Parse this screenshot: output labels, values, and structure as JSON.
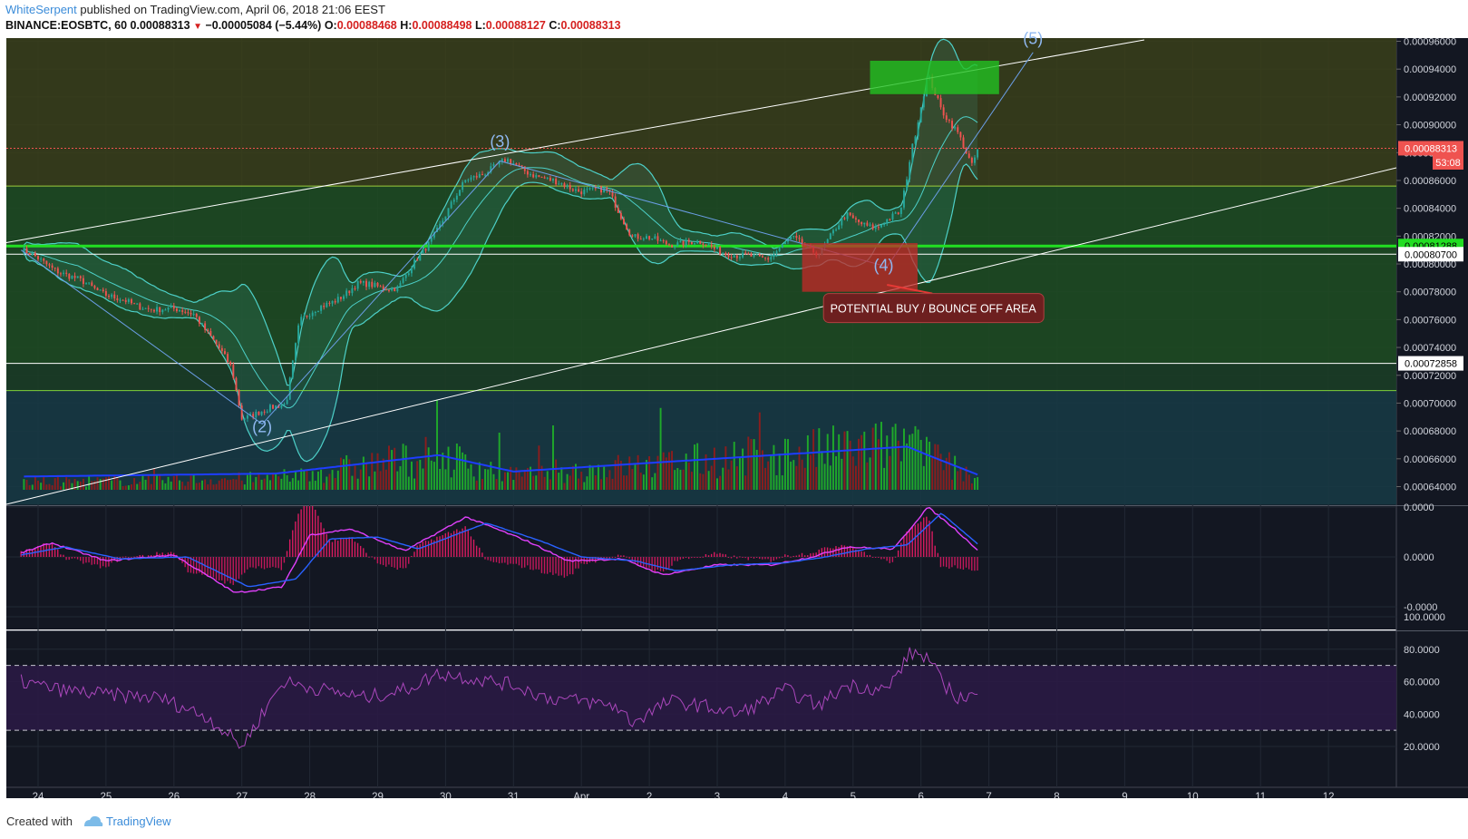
{
  "header": {
    "user": "WhiteSerpent",
    "published_text": " published on TradingView.com, April 06, 2018 21:06 EEST",
    "symbol": "BINANCE:EOSBTC, 60",
    "last": "0.00088313",
    "change": "−0.00005084 (−5.44%)",
    "o_label": "O:",
    "o_value": "0.00088468",
    "h_label": "H:",
    "h_value": "0.00088498",
    "l_label": "L:",
    "l_value": "0.00088127",
    "c_label": "C:",
    "c_value": "0.00088313"
  },
  "footer": {
    "created_with": "Created with",
    "brand": "TradingView"
  },
  "colors": {
    "background": "#131722",
    "up": "#26a69a",
    "down": "#ef5350",
    "bands": "#4dd0c8",
    "macd": "#e040fb",
    "signal": "#2962ff",
    "rsi": "#ab47bc",
    "buy_zone": "#c62828",
    "target_zone": "#22c222"
  },
  "chart_data": [
    {
      "type": "candlestick",
      "panel": "price",
      "y_ticks": [
        "0.00096000",
        "0.00094000",
        "0.00092000",
        "0.00090000",
        "0.00088000",
        "0.00086000",
        "0.00084000",
        "0.00082000",
        "0.00080000",
        "0.00078000",
        "0.00076000",
        "0.00074000",
        "0.00072000",
        "0.00070000",
        "0.00068000",
        "0.00066000",
        "0.00064000"
      ],
      "ylim": [
        0.00064,
        0.00096
      ],
      "x_ticks": [
        "24",
        "25",
        "26",
        "27",
        "28",
        "29",
        "30",
        "31",
        "Apr",
        "2",
        "3",
        "4",
        "5",
        "6",
        "7",
        "8",
        "9",
        "10",
        "11",
        "12"
      ],
      "price_labels": [
        {
          "value": "0.00088313",
          "y": 0.00088313,
          "style": "last"
        },
        {
          "value": "53:08",
          "y": 0.000873,
          "style": "timer"
        },
        {
          "value": "0.00081288",
          "y": 0.00081288,
          "style": "green"
        },
        {
          "value": "0.00080700",
          "y": 0.000807,
          "style": "white"
        },
        {
          "value": "0.00072858",
          "y": 0.00072858,
          "style": "white"
        }
      ],
      "horizontal_lines": [
        0.000856,
        0.00081288,
        0.000807,
        0.00072858,
        0.000709
      ],
      "trend_lines": [
        {
          "from": [
            23.75,
            0.000816
          ],
          "to": [
            26.05,
            0.00094
          ],
          "note": "upper channel"
        },
        {
          "from": [
            23.75,
            0.00064
          ],
          "to": [
            26.05,
            0.00087
          ],
          "note": "lower channel"
        }
      ],
      "wave_labels": [
        {
          "label": "(2)",
          "x": 27.3,
          "y": 0.000679
        },
        {
          "label": "(3)",
          "x": 30.8,
          "y": 0.000884
        },
        {
          "label": "(4)",
          "x": 5.45,
          "y": 0.000795
        },
        {
          "label": "(5)",
          "x": 7.65,
          "y": 0.000958
        }
      ],
      "wave_path": [
        {
          "x": 23.75,
          "y": 0.00081
        },
        {
          "x": 27.3,
          "y": 0.000685
        },
        {
          "x": 30.8,
          "y": 0.000874
        },
        {
          "x": 5.5,
          "y": 0.000798
        },
        {
          "x": 7.65,
          "y": 0.000952
        }
      ],
      "zones": [
        {
          "name": "buy",
          "x": [
            4.25,
            5.95
          ],
          "y": [
            0.00078,
            0.000815
          ]
        },
        {
          "name": "target",
          "x": [
            5.25,
            7.15
          ],
          "y": [
            0.000922,
            0.000946
          ]
        }
      ],
      "annotation": {
        "text": "POTENTIAL BUY / BOUNCE OFF AREA",
        "x": 5.9,
        "y": 0.000769
      },
      "anchor_points": [
        {
          "x": 23.75,
          "y": 0.00081
        },
        {
          "x": 24.5,
          "y": 0.00079
        },
        {
          "x": 25.4,
          "y": 0.00077
        },
        {
          "x": 26.3,
          "y": 0.000765
        },
        {
          "x": 26.85,
          "y": 0.000725
        },
        {
          "x": 27.0,
          "y": 0.00069
        },
        {
          "x": 27.4,
          "y": 0.000695
        },
        {
          "x": 27.65,
          "y": 0.0007
        },
        {
          "x": 27.85,
          "y": 0.00076
        },
        {
          "x": 28.3,
          "y": 0.000772
        },
        {
          "x": 28.7,
          "y": 0.000785
        },
        {
          "x": 29.3,
          "y": 0.000783
        },
        {
          "x": 29.75,
          "y": 0.000815
        },
        {
          "x": 30.3,
          "y": 0.00086
        },
        {
          "x": 30.9,
          "y": 0.000874
        },
        {
          "x": 31.5,
          "y": 0.00086
        },
        {
          "x": 32.0,
          "y": 0.000853
        },
        {
          "x": 32.4,
          "y": 0.000852
        },
        {
          "x": 32.75,
          "y": 0.00082
        },
        {
          "x": 33.3,
          "y": 0.000815
        },
        {
          "x": 33.8,
          "y": 0.000815
        },
        {
          "x": 34.3,
          "y": 0.000805
        },
        {
          "x": 34.75,
          "y": 0.000805
        },
        {
          "x": 35.1,
          "y": 0.000818
        },
        {
          "x": 35.5,
          "y": 0.000808
        },
        {
          "x": 35.9,
          "y": 0.000835
        },
        {
          "x": 36.35,
          "y": 0.000825
        },
        {
          "x": 36.7,
          "y": 0.000838
        },
        {
          "x": 36.85,
          "y": 0.00088
        },
        {
          "x": 37.1,
          "y": 0.000935
        },
        {
          "x": 37.3,
          "y": 0.00091
        },
        {
          "x": 37.55,
          "y": 0.000895
        },
        {
          "x": 37.75,
          "y": 0.00087
        },
        {
          "x": 37.85,
          "y": 0.000883
        }
      ],
      "volume_anchor_points": [
        {
          "x": 23.75,
          "y": 0.12
        },
        {
          "x": 27.5,
          "y": 0.18
        },
        {
          "x": 29.9,
          "y": 0.55
        },
        {
          "x": 31.0,
          "y": 0.22
        },
        {
          "x": 36.8,
          "y": 0.72
        },
        {
          "x": 37.1,
          "y": 0.55
        },
        {
          "x": 37.85,
          "y": 0.15
        }
      ]
    },
    {
      "type": "line",
      "panel": "macd",
      "y_ticks": [
        "0.0000",
        "0.0000",
        "-0.0000"
      ],
      "series_points": {
        "macd": [
          [
            23.75,
            0.1
          ],
          [
            24.2,
            0.35
          ],
          [
            25.0,
            -0.1
          ],
          [
            26.0,
            0.05
          ],
          [
            26.9,
            -0.9
          ],
          [
            27.6,
            -0.75
          ],
          [
            28.0,
            0.55
          ],
          [
            28.6,
            0.7
          ],
          [
            29.4,
            0.15
          ],
          [
            30.3,
            1.0
          ],
          [
            31.2,
            0.4
          ],
          [
            31.8,
            -0.1
          ],
          [
            32.6,
            -0.05
          ],
          [
            33.2,
            -0.45
          ],
          [
            34.0,
            -0.2
          ],
          [
            34.8,
            -0.2
          ],
          [
            35.4,
            0.0
          ],
          [
            35.9,
            0.25
          ],
          [
            36.6,
            0.2
          ],
          [
            37.1,
            1.25
          ],
          [
            37.5,
            0.7
          ],
          [
            37.85,
            0.15
          ]
        ],
        "signal": [
          [
            23.75,
            0.05
          ],
          [
            24.4,
            0.25
          ],
          [
            25.2,
            -0.05
          ],
          [
            26.2,
            0.0
          ],
          [
            27.1,
            -0.75
          ],
          [
            27.8,
            -0.55
          ],
          [
            28.3,
            0.45
          ],
          [
            29.0,
            0.5
          ],
          [
            29.6,
            0.2
          ],
          [
            30.6,
            0.85
          ],
          [
            31.4,
            0.4
          ],
          [
            32.0,
            0.0
          ],
          [
            32.8,
            -0.1
          ],
          [
            33.4,
            -0.35
          ],
          [
            34.2,
            -0.2
          ],
          [
            35.0,
            -0.15
          ],
          [
            35.6,
            0.0
          ],
          [
            36.2,
            0.2
          ],
          [
            36.8,
            0.3
          ],
          [
            37.3,
            1.1
          ],
          [
            37.85,
            0.3
          ]
        ]
      }
    },
    {
      "type": "line",
      "panel": "rsi",
      "y_ticks": [
        "100.0000",
        "80.0000",
        "60.0000",
        "40.0000",
        "20.0000"
      ],
      "ylim": [
        0,
        100
      ],
      "band": [
        30,
        70
      ],
      "anchor_points": [
        [
          23.75,
          60
        ],
        [
          24.3,
          55
        ],
        [
          25.0,
          52
        ],
        [
          25.8,
          50
        ],
        [
          26.5,
          38
        ],
        [
          26.95,
          22
        ],
        [
          27.0,
          20
        ],
        [
          27.6,
          60
        ],
        [
          28.2,
          55
        ],
        [
          28.8,
          50
        ],
        [
          29.4,
          55
        ],
        [
          29.9,
          65
        ],
        [
          30.4,
          62
        ],
        [
          31.0,
          58
        ],
        [
          31.5,
          50
        ],
        [
          32.0,
          48
        ],
        [
          32.5,
          45
        ],
        [
          32.75,
          35
        ],
        [
          33.3,
          48
        ],
        [
          33.8,
          45
        ],
        [
          34.3,
          40
        ],
        [
          34.7,
          48
        ],
        [
          35.0,
          55
        ],
        [
          35.5,
          45
        ],
        [
          35.9,
          58
        ],
        [
          36.5,
          55
        ],
        [
          36.85,
          78
        ],
        [
          37.1,
          75
        ],
        [
          37.3,
          60
        ],
        [
          37.55,
          50
        ],
        [
          37.85,
          52
        ]
      ]
    }
  ]
}
